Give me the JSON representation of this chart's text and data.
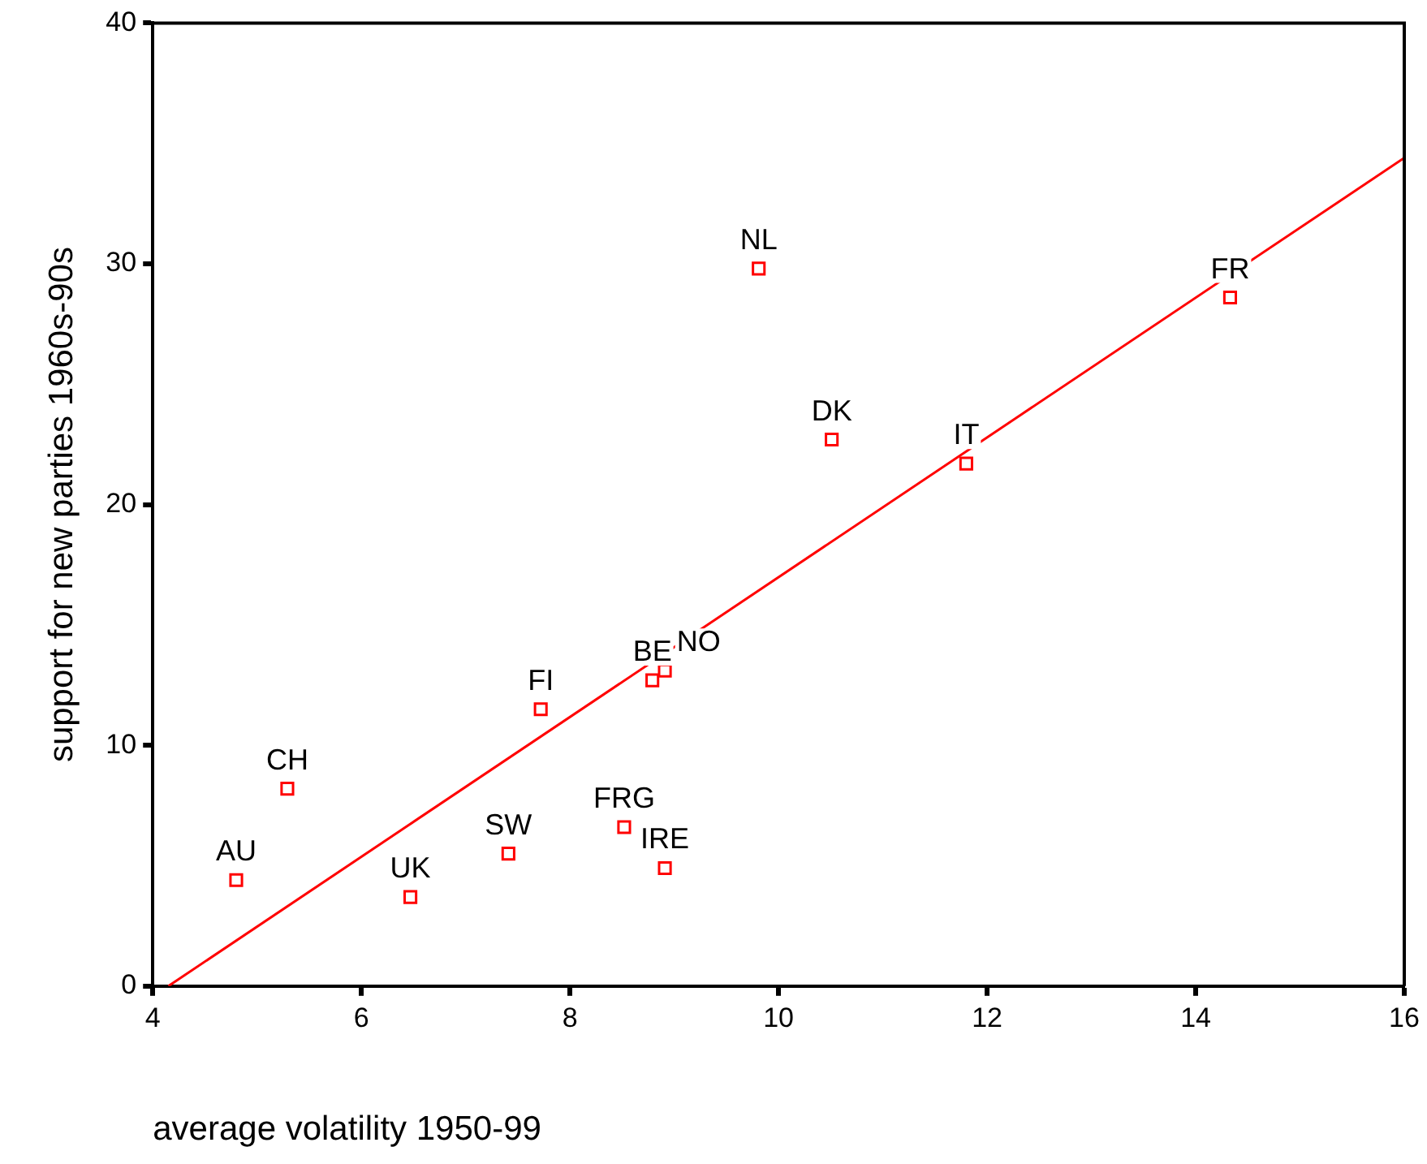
{
  "chart_data": {
    "type": "scatter",
    "xlabel": "average volatility 1950-99",
    "ylabel": "support for new parties 1960s-90s",
    "xlim": [
      4,
      16
    ],
    "ylim": [
      0,
      40
    ],
    "xticks": [
      4,
      6,
      8,
      10,
      12,
      14,
      16
    ],
    "yticks": [
      0,
      10,
      20,
      30,
      40
    ],
    "grid": false,
    "legend": false,
    "marker": "square",
    "series": [
      {
        "type": "scatter",
        "color": "#ff0000",
        "x": [
          4.8,
          5.29,
          6.47,
          7.41,
          7.72,
          8.52,
          8.79,
          8.91,
          8.91,
          9.81,
          10.51,
          11.8,
          14.33
        ],
        "values": [
          4.4,
          8.2,
          3.7,
          5.5,
          11.5,
          6.6,
          12.7,
          13.1,
          4.9,
          29.8,
          22.7,
          21.7,
          28.6
        ]
      },
      {
        "type": "line",
        "color": "#ff0000",
        "marker": "none",
        "x": [
          4.15,
          16
        ],
        "values": [
          0,
          34.4
        ]
      }
    ],
    "annotations": [
      {
        "text": "AU",
        "x": 4.8,
        "y": 4.4
      },
      {
        "text": "CH",
        "x": 5.29,
        "y": 8.2
      },
      {
        "text": "UK",
        "x": 6.47,
        "y": 3.7
      },
      {
        "text": "SW",
        "x": 7.41,
        "y": 5.5
      },
      {
        "text": "FI",
        "x": 7.72,
        "y": 11.5
      },
      {
        "text": "FRG",
        "x": 8.52,
        "y": 6.6
      },
      {
        "text": "BE",
        "x": 8.79,
        "y": 12.7
      },
      {
        "text": "NO",
        "x": 8.91,
        "y": 13.1
      },
      {
        "text": "IRE",
        "x": 8.91,
        "y": 4.9
      },
      {
        "text": "NL",
        "x": 9.81,
        "y": 29.8
      },
      {
        "text": "DK",
        "x": 10.51,
        "y": 22.7
      },
      {
        "text": "IT",
        "x": 11.8,
        "y": 21.7
      },
      {
        "text": "FR",
        "x": 14.33,
        "y": 28.6
      }
    ]
  }
}
